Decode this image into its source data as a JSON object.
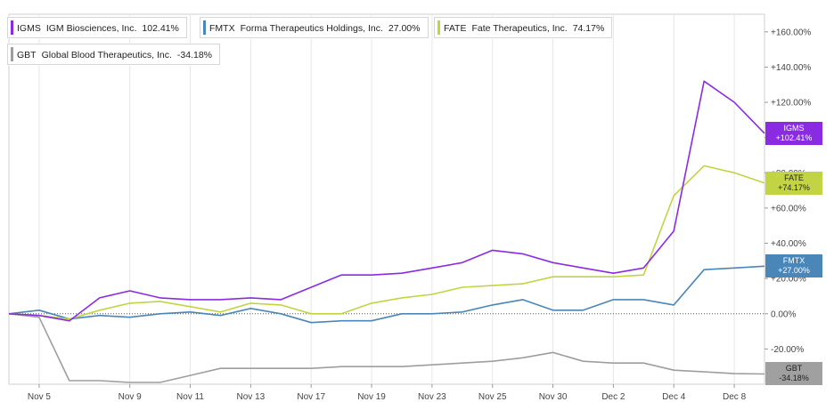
{
  "legend": [
    {
      "ticker": "IGMS",
      "name": "IGM Biosciences, Inc.",
      "pct": "102.41%",
      "color": "#8a2be2"
    },
    {
      "ticker": "FMTX",
      "name": "Forma Therapeutics Holdings, Inc.",
      "pct": "27.00%",
      "color": "#4a86b8"
    },
    {
      "ticker": "FATE",
      "name": "Fate Therapeutics, Inc.",
      "pct": "74.17%",
      "color": "#c2d444"
    },
    {
      "ticker": "GBT",
      "name": "Global Blood Therapeutics, Inc.",
      "pct": "-34.18%",
      "color": "#9e9e9e"
    }
  ],
  "end_labels": [
    {
      "ticker": "IGMS",
      "value": "+102.41%",
      "bg": "#8a2be2"
    },
    {
      "ticker": "FATE",
      "value": "+74.17%",
      "bg": "#c2d444"
    },
    {
      "ticker": "FMTX",
      "value": "+27.00%",
      "bg": "#4a86b8"
    },
    {
      "ticker": "GBT",
      "value": "-34.18%",
      "bg": "#a0a0a0"
    }
  ],
  "chart_data": {
    "type": "line",
    "title": "",
    "xlabel": "",
    "ylabel": "",
    "ylim": [
      -40,
      170
    ],
    "y_ticks": [
      "-20.00%",
      "0.00%",
      "+20.00%",
      "+40.00%",
      "+60.00%",
      "+80.00%",
      "+100.00%",
      "+120.00%",
      "+140.00%",
      "+160.00%"
    ],
    "y_tick_values": [
      -20,
      0,
      20,
      40,
      60,
      80,
      100,
      120,
      140,
      160
    ],
    "x_tick_labels": [
      "Nov 5",
      "Nov 9",
      "Nov 11",
      "Nov 13",
      "Nov 17",
      "Nov 19",
      "Nov 23",
      "Nov 25",
      "Nov 30",
      "Dec 2",
      "Dec 4",
      "Dec 8"
    ],
    "x_tick_index": [
      1,
      4,
      6,
      8,
      10,
      12,
      14,
      16,
      18,
      20,
      22,
      24
    ],
    "n_points": 26,
    "baseline": 0,
    "grid": "vertical",
    "legend_position": "top-left",
    "series": [
      {
        "name": "IGMS",
        "color": "#8a2be2",
        "values": [
          0,
          -1,
          -4,
          9,
          13,
          9,
          8,
          8,
          9,
          8,
          15,
          22,
          22,
          23,
          26,
          29,
          36,
          34,
          29,
          26,
          23,
          26,
          47,
          132,
          120,
          102.41
        ]
      },
      {
        "name": "FATE",
        "color": "#c2d444",
        "values": [
          0,
          -1,
          -3,
          2,
          6,
          7,
          4,
          1,
          6,
          5,
          0,
          0,
          6,
          9,
          11,
          15,
          16,
          17,
          21,
          21,
          21,
          22,
          67,
          84,
          80,
          74.17
        ]
      },
      {
        "name": "FMTX",
        "color": "#4a86b8",
        "values": [
          0,
          2,
          -3,
          -1,
          -2,
          0,
          1,
          -1,
          3,
          0,
          -5,
          -4,
          -4,
          0,
          0,
          1,
          5,
          8,
          2,
          2,
          8,
          8,
          5,
          25,
          26,
          27.0
        ]
      },
      {
        "name": "GBT",
        "color": "#9e9e9e",
        "values": [
          0,
          -2,
          -38,
          -38,
          -39,
          -39,
          -35,
          -31,
          -31,
          -31,
          -31,
          -30,
          -30,
          -30,
          -29,
          -28,
          -27,
          -25,
          -22,
          -27,
          -28,
          -28,
          -32,
          -33,
          -34,
          -34.18
        ]
      }
    ]
  }
}
